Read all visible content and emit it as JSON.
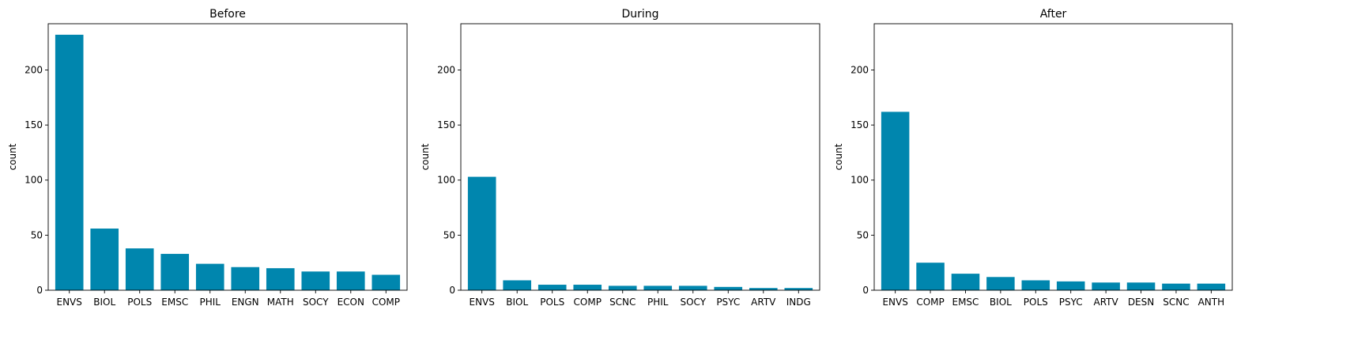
{
  "bar_color": "#0086ae",
  "chart_data": [
    {
      "type": "bar",
      "title": "Before",
      "xlabel": "",
      "ylabel": "count",
      "ylim": [
        0,
        242
      ],
      "yticks": [
        0,
        50,
        100,
        150,
        200
      ],
      "categories": [
        "ENVS",
        "BIOL",
        "POLS",
        "EMSC",
        "PHIL",
        "ENGN",
        "MATH",
        "SOCY",
        "ECON",
        "COMP"
      ],
      "values": [
        232,
        56,
        38,
        33,
        24,
        21,
        20,
        17,
        17,
        14
      ]
    },
    {
      "type": "bar",
      "title": "During",
      "xlabel": "",
      "ylabel": "count",
      "ylim": [
        0,
        242
      ],
      "yticks": [
        0,
        50,
        100,
        150,
        200
      ],
      "categories": [
        "ENVS",
        "BIOL",
        "POLS",
        "COMP",
        "SCNC",
        "PHIL",
        "SOCY",
        "PSYC",
        "ARTV",
        "INDG"
      ],
      "values": [
        103,
        9,
        5,
        5,
        4,
        4,
        4,
        3,
        2,
        2
      ]
    },
    {
      "type": "bar",
      "title": "After",
      "xlabel": "",
      "ylabel": "count",
      "ylim": [
        0,
        242
      ],
      "yticks": [
        0,
        50,
        100,
        150,
        200
      ],
      "categories": [
        "ENVS",
        "COMP",
        "EMSC",
        "BIOL",
        "POLS",
        "PSYC",
        "ARTV",
        "DESN",
        "SCNC",
        "ANTH"
      ],
      "values": [
        162,
        25,
        15,
        12,
        9,
        8,
        7,
        7,
        6,
        6
      ]
    }
  ]
}
